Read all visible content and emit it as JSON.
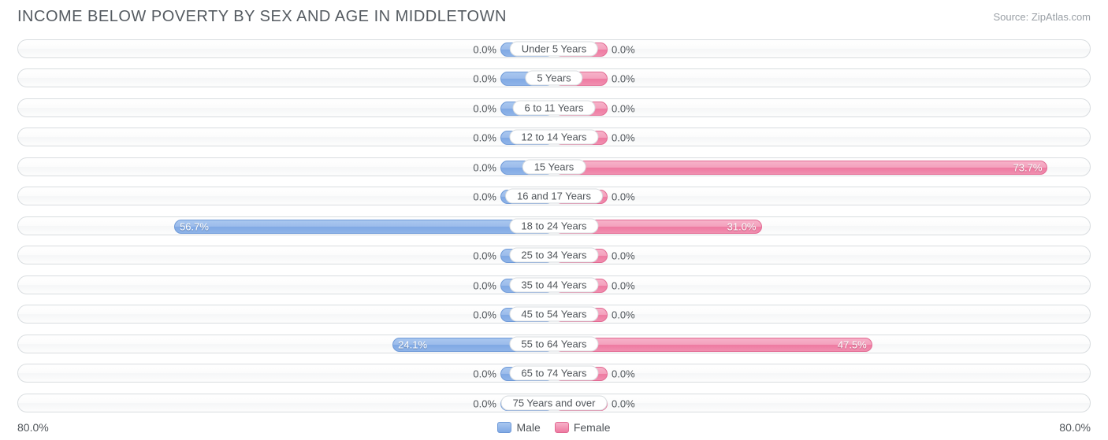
{
  "title": "INCOME BELOW POVERTY BY SEX AND AGE IN MIDDLETOWN",
  "source": "Source: ZipAtlas.com",
  "chart": {
    "type": "diverging-bar",
    "axis_max": 80.0,
    "axis_label_left": "80.0%",
    "axis_label_right": "80.0%",
    "min_bar_pct": 10.0,
    "male_color": "#8fb4e8",
    "male_border": "#6f9ad8",
    "female_color": "#f18fb0",
    "female_border": "#e26b93",
    "track_border": "#d8dcdf",
    "background": "#ffffff",
    "label_fontsize": 13,
    "title_fontsize": 20,
    "title_color": "#555b61",
    "source_color": "#999fa5",
    "rows": [
      {
        "category": "Under 5 Years",
        "male": 0.0,
        "female": 0.0
      },
      {
        "category": "5 Years",
        "male": 0.0,
        "female": 0.0
      },
      {
        "category": "6 to 11 Years",
        "male": 0.0,
        "female": 0.0
      },
      {
        "category": "12 to 14 Years",
        "male": 0.0,
        "female": 0.0
      },
      {
        "category": "15 Years",
        "male": 0.0,
        "female": 73.7
      },
      {
        "category": "16 and 17 Years",
        "male": 0.0,
        "female": 0.0
      },
      {
        "category": "18 to 24 Years",
        "male": 56.7,
        "female": 31.0
      },
      {
        "category": "25 to 34 Years",
        "male": 0.0,
        "female": 0.0
      },
      {
        "category": "35 to 44 Years",
        "male": 0.0,
        "female": 0.0
      },
      {
        "category": "45 to 54 Years",
        "male": 0.0,
        "female": 0.0
      },
      {
        "category": "55 to 64 Years",
        "male": 24.1,
        "female": 47.5
      },
      {
        "category": "65 to 74 Years",
        "male": 0.0,
        "female": 0.0
      },
      {
        "category": "75 Years and over",
        "male": 0.0,
        "female": 0.0
      }
    ]
  },
  "legend": {
    "male": "Male",
    "female": "Female"
  }
}
